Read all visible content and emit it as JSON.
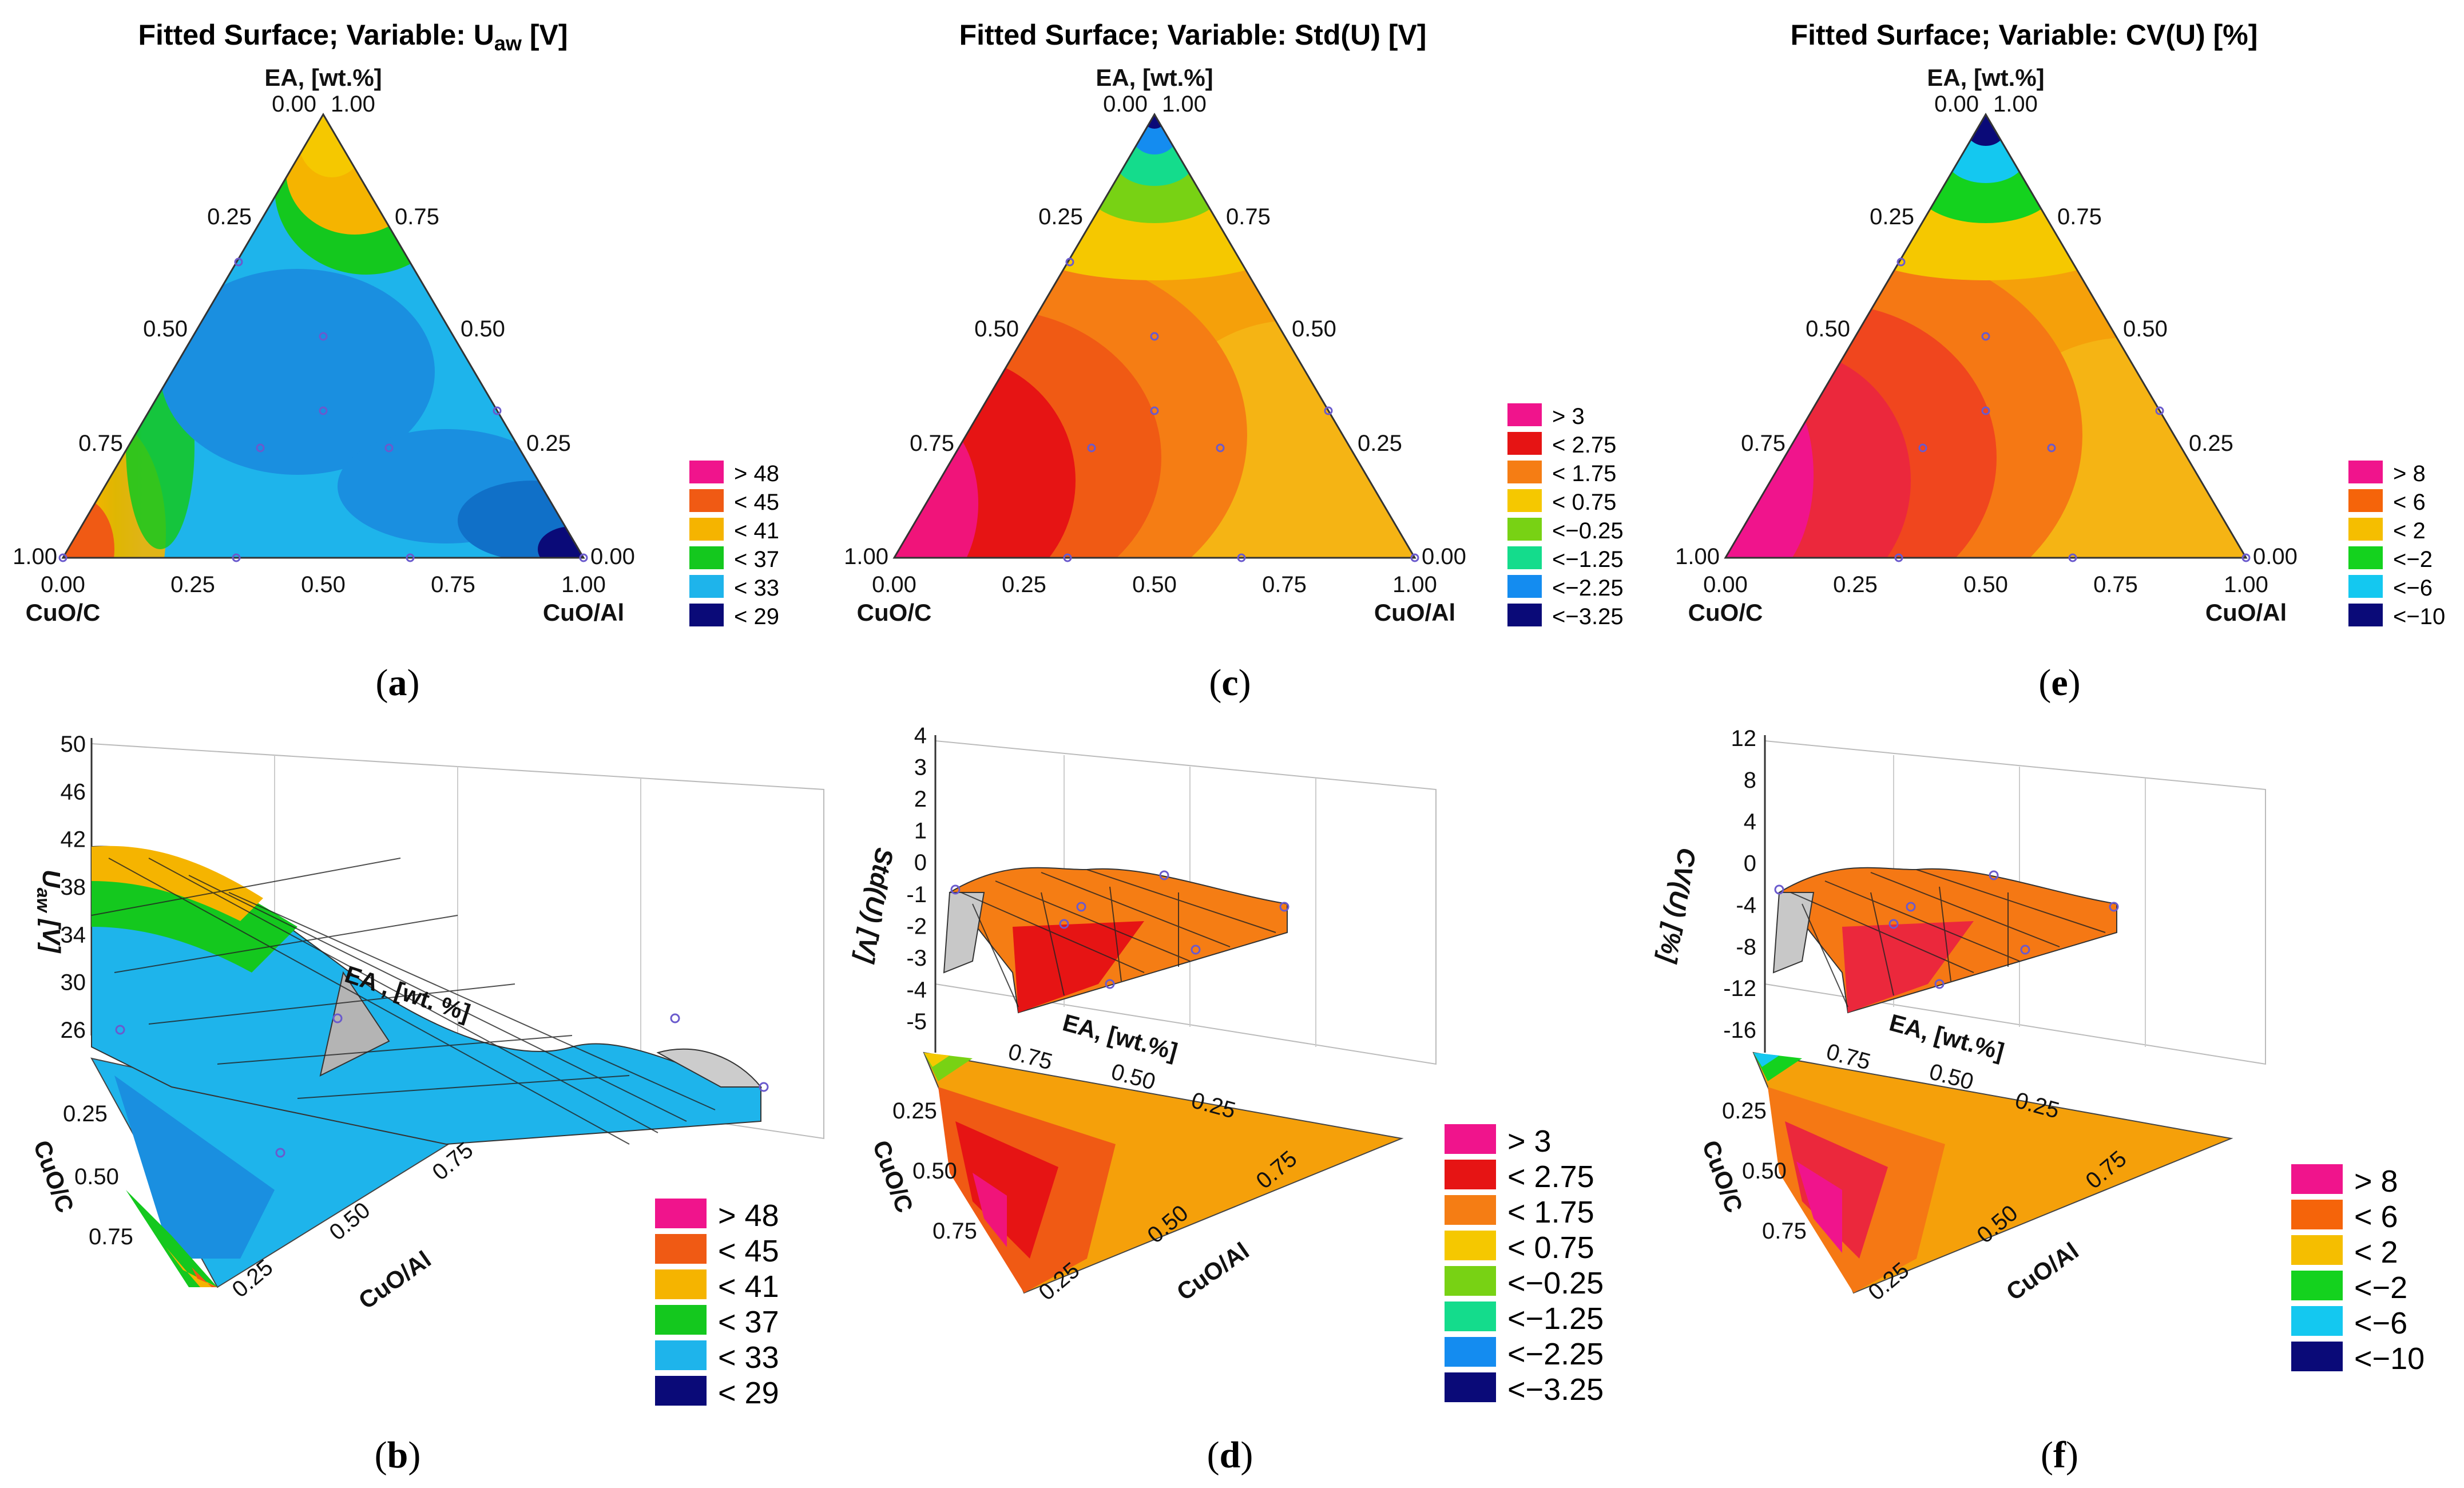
{
  "chart_data": [
    {
      "panel": "a",
      "type": "ternary-contour",
      "title": "Fitted Surface; Variable: U",
      "title_sub": "aw",
      "title_suffix": " [V]",
      "apex_label": "EA, [wt.%]",
      "left_label": "CuO/C",
      "right_label": "CuO/Al",
      "top_ticks": [
        "0.00",
        "1.00"
      ],
      "left_ticks": [
        "0.25",
        "0.50",
        "0.75",
        "1.00"
      ],
      "right_ticks": [
        "0.75",
        "0.50",
        "0.25",
        "0.00"
      ],
      "bottom_ticks": [
        "0.00",
        "0.25",
        "0.50",
        "0.75",
        "1.00"
      ],
      "legend": [
        {
          "label": "> 48",
          "color": "#f0148c"
        },
        {
          "label": "< 45",
          "color": "#f05a14"
        },
        {
          "label": "< 41",
          "color": "#f5b400"
        },
        {
          "label": "< 37",
          "color": "#14c81e"
        },
        {
          "label": "< 33",
          "color": "#1eb4eb"
        },
        {
          "label": "< 29",
          "color": "#0a0a78"
        }
      ],
      "caption": "a"
    },
    {
      "panel": "b",
      "type": "surface-3d",
      "z_label": "U",
      "z_label_sub": "aw",
      "z_label_suffix": " [V]",
      "z_ticks": [
        "50",
        "46",
        "42",
        "38",
        "34",
        "30",
        "26"
      ],
      "ea_label": "EA , [wt. %]",
      "left_label": "CuO/C",
      "left_ticks": [
        "0.25",
        "0.50",
        "0.75"
      ],
      "right_label": "CuO/Al",
      "right_ticks": [
        "0.25",
        "0.50",
        "0.75"
      ],
      "legend": [
        {
          "label": "> 48",
          "color": "#f0148c"
        },
        {
          "label": "< 45",
          "color": "#f05a14"
        },
        {
          "label": "< 41",
          "color": "#f5b400"
        },
        {
          "label": "< 37",
          "color": "#14c81e"
        },
        {
          "label": "< 33",
          "color": "#1eb4eb"
        },
        {
          "label": "< 29",
          "color": "#0a0a78"
        }
      ],
      "caption": "b"
    },
    {
      "panel": "c",
      "type": "ternary-contour",
      "title": "Fitted Surface; Variable: Std(U) [V]",
      "title_sub": "",
      "title_suffix": "",
      "apex_label": "EA, [wt.%]",
      "left_label": "CuO/C",
      "right_label": "CuO/Al",
      "top_ticks": [
        "0.00",
        "1.00"
      ],
      "left_ticks": [
        "0.25",
        "0.50",
        "0.75",
        "1.00"
      ],
      "right_ticks": [
        "0.75",
        "0.50",
        "0.25",
        "0.00"
      ],
      "bottom_ticks": [
        "0.00",
        "0.25",
        "0.50",
        "0.75",
        "1.00"
      ],
      "legend": [
        {
          "label": "> 3",
          "color": "#f0148c"
        },
        {
          "label": "< 2.75",
          "color": "#e61414"
        },
        {
          "label": "< 1.75",
          "color": "#f57d14"
        },
        {
          "label": "< 0.75",
          "color": "#f5c800"
        },
        {
          "label": "<−0.25",
          "color": "#78d214"
        },
        {
          "label": "<−1.25",
          "color": "#14dc8c"
        },
        {
          "label": "<−2.25",
          "color": "#148cf0"
        },
        {
          "label": "<−3.25",
          "color": "#0a0a78"
        }
      ],
      "caption": "c"
    },
    {
      "panel": "d",
      "type": "surface-3d",
      "z_label": "Std(U) [V]",
      "z_label_sub": "",
      "z_label_suffix": "",
      "z_ticks": [
        "4",
        "3",
        "2",
        "1",
        "0",
        "-1",
        "-2",
        "-3",
        "-4",
        "-5"
      ],
      "ea_label": "EA, [wt.%]",
      "ea_ticks": [
        "0.75",
        "0.50",
        "0.25"
      ],
      "left_label": "CuO/C",
      "left_ticks": [
        "0.25",
        "0.50",
        "0.75"
      ],
      "right_label": "CuO/Al",
      "right_ticks": [
        "0.25",
        "0.50",
        "0.75"
      ],
      "legend": [
        {
          "label": "> 3",
          "color": "#f0148c"
        },
        {
          "label": "< 2.75",
          "color": "#e61414"
        },
        {
          "label": "< 1.75",
          "color": "#f57d14"
        },
        {
          "label": "< 0.75",
          "color": "#f5c800"
        },
        {
          "label": "<−0.25",
          "color": "#78d214"
        },
        {
          "label": "<−1.25",
          "color": "#14dc8c"
        },
        {
          "label": "<−2.25",
          "color": "#148cf0"
        },
        {
          "label": "<−3.25",
          "color": "#0a0a78"
        }
      ],
      "caption": "d"
    },
    {
      "panel": "e",
      "type": "ternary-contour",
      "title": "Fitted Surface; Variable: CV(U) [%]",
      "title_sub": "",
      "title_suffix": "",
      "apex_label": "EA, [wt.%]",
      "left_label": "CuO/C",
      "right_label": "CuO/Al",
      "top_ticks": [
        "0.00",
        "1.00"
      ],
      "left_ticks": [
        "0.25",
        "0.50",
        "0.75",
        "1.00"
      ],
      "right_ticks": [
        "0.75",
        "0.50",
        "0.25",
        "0.00"
      ],
      "bottom_ticks": [
        "0.00",
        "0.25",
        "0.50",
        "0.75",
        "1.00"
      ],
      "legend": [
        {
          "label": "> 8",
          "color": "#f0148c"
        },
        {
          "label": "< 6",
          "color": "#f5640a"
        },
        {
          "label": "< 2",
          "color": "#f5be00"
        },
        {
          "label": "<−2",
          "color": "#14d21e"
        },
        {
          "label": "<−6",
          "color": "#14c8f0"
        },
        {
          "label": "<−10",
          "color": "#0a0a78"
        }
      ],
      "caption": "e"
    },
    {
      "panel": "f",
      "type": "surface-3d",
      "z_label": "CV(U) [%]",
      "z_label_sub": "",
      "z_label_suffix": "",
      "z_ticks": [
        "12",
        "8",
        "4",
        "0",
        "-4",
        "-8",
        "-12",
        "-16"
      ],
      "ea_label": "EA, [wt.%]",
      "ea_ticks": [
        "0.75",
        "0.50",
        "0.25"
      ],
      "left_label": "CuO/C",
      "left_ticks": [
        "0.25",
        "0.50",
        "0.75"
      ],
      "right_label": "CuO/Al",
      "right_ticks": [
        "0.25",
        "0.50",
        "0.75"
      ],
      "legend": [
        {
          "label": "> 8",
          "color": "#f0148c"
        },
        {
          "label": "< 6",
          "color": "#f5640a"
        },
        {
          "label": "< 2",
          "color": "#f5be00"
        },
        {
          "label": "<−2",
          "color": "#14d21e"
        },
        {
          "label": "<−6",
          "color": "#14c8f0"
        },
        {
          "label": "<−10",
          "color": "#0a0a78"
        }
      ],
      "caption": "f"
    }
  ]
}
